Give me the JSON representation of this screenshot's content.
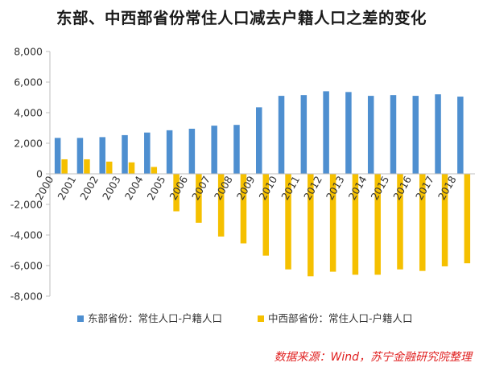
{
  "chart_title": "东部、中西部省份常住人口减去户籍人口之差的变化",
  "source_note": "数据来源：Wind，苏宁金融研究院整理",
  "colors": {
    "east": "#4e8fd0",
    "midwest": "#f5c000",
    "axis": "#bfbfbf",
    "text": "#333333"
  },
  "chart_data": {
    "type": "bar",
    "title": "东部、中西部省份常住人口减去户籍人口之差的变化",
    "xlabel": "",
    "ylabel": "",
    "ylim": [
      -8000,
      8000
    ],
    "yticks": [
      8000,
      6000,
      4000,
      2000,
      0,
      -2000,
      -4000,
      -6000,
      -8000
    ],
    "ytick_labels": [
      "8,000",
      "6,000",
      "4,000",
      "2,000",
      "0",
      "-2,000",
      "-4,000",
      "-6,000",
      "-8,000"
    ],
    "grid": false,
    "legend_position": "bottom",
    "categories": [
      "2000",
      "2001",
      "2002",
      "2003",
      "2004",
      "2005",
      "2006",
      "2007",
      "2008",
      "2009",
      "2010",
      "2011",
      "2012",
      "2013",
      "2014",
      "2015",
      "2016",
      "2017",
      "2018"
    ],
    "series": [
      {
        "name": "东部省份：常住人口-户籍人口",
        "values": [
          2350,
          2350,
          2400,
          2530,
          2700,
          2850,
          2950,
          3150,
          3200,
          4350,
          5100,
          5150,
          5400,
          5350,
          5100,
          5150,
          5100,
          5200,
          5050
        ]
      },
      {
        "name": "中西部省份：常住人口-户籍人口",
        "values": [
          950,
          950,
          800,
          750,
          450,
          -2450,
          -3200,
          -4100,
          -4550,
          -5350,
          -6250,
          -6700,
          -6400,
          -6600,
          -6600,
          -6250,
          -6350,
          -6050,
          -5850
        ]
      }
    ]
  }
}
